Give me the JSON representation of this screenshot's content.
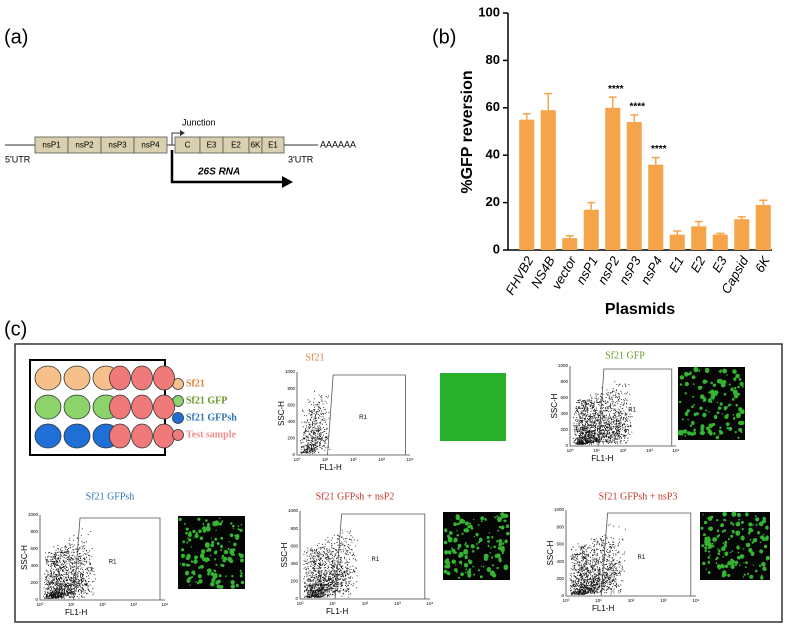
{
  "chart_data": {
    "type": "bar",
    "panel_label": "(b)",
    "y_label": "%GFP reversion",
    "x_label": "Plasmids",
    "categories": [
      "FHVB2",
      "NS4B",
      "vector",
      "nsP1",
      "nsP2",
      "nsP3",
      "nsP4",
      "E1",
      "E2",
      "E3",
      "Capsid",
      "6K"
    ],
    "values": [
      55,
      59,
      5,
      17,
      60,
      54,
      36,
      6.5,
      10,
      6.5,
      13,
      19
    ],
    "errors": [
      2.5,
      7,
      1,
      3,
      4.5,
      3,
      3,
      1.5,
      2,
      0.5,
      1,
      2
    ],
    "significance": [
      null,
      null,
      null,
      null,
      "****",
      "****",
      "****",
      null,
      null,
      null,
      null,
      null
    ],
    "color": "#f6a44a",
    "ylim": [
      0,
      100
    ],
    "yticks": [
      0,
      20,
      40,
      60,
      80,
      100
    ]
  },
  "diagram": {
    "panel_label": "(a)",
    "nonstructural": [
      "nsP1",
      "nsP2",
      "nsP3",
      "nsP4"
    ],
    "structural": [
      "C",
      "E3",
      "E2",
      "6K",
      "E1"
    ],
    "utr5": "5'UTR",
    "utr3": "3'UTR",
    "polyA": "AAAAAA",
    "junction": "Junction",
    "rna": "26S RNA"
  },
  "flow": {
    "panel_label": "(c)",
    "legend": [
      {
        "label": "Sf21",
        "color": "#f7c08a",
        "text_color": "#e3803a"
      },
      {
        "label": "Sf21 GFP",
        "color": "#8bd36a",
        "text_color": "#6a9a2a"
      },
      {
        "label": "Sf21 GFPsh",
        "color": "#1f6fd6",
        "text_color": "#2e75b6"
      },
      {
        "label": "Test sample",
        "color": "#f07a7a",
        "text_color": "#ee8d8d"
      }
    ],
    "axes": {
      "y_label": "SSC-H",
      "x_label": "FL1-H",
      "gate": "R1",
      "y_ticks": [
        "0",
        "200",
        "400",
        "600",
        "800",
        "1000"
      ],
      "x_ticks": [
        "10⁰",
        "10¹",
        "10²",
        "10³",
        "10⁴"
      ]
    },
    "plots": [
      {
        "title": "Sf21",
        "title_color": "#e3803a"
      },
      {
        "title": "Sf21 GFP",
        "title_color": "#6a9a2a"
      },
      {
        "title": "Sf21 GFPsh",
        "title_color": "#2e75b6"
      },
      {
        "title": "Sf21 GFPsh + nsP2",
        "title_color": "#c0392b"
      },
      {
        "title": "Sf21 GFPsh + nsP3",
        "title_color": "#c0392b"
      }
    ]
  }
}
